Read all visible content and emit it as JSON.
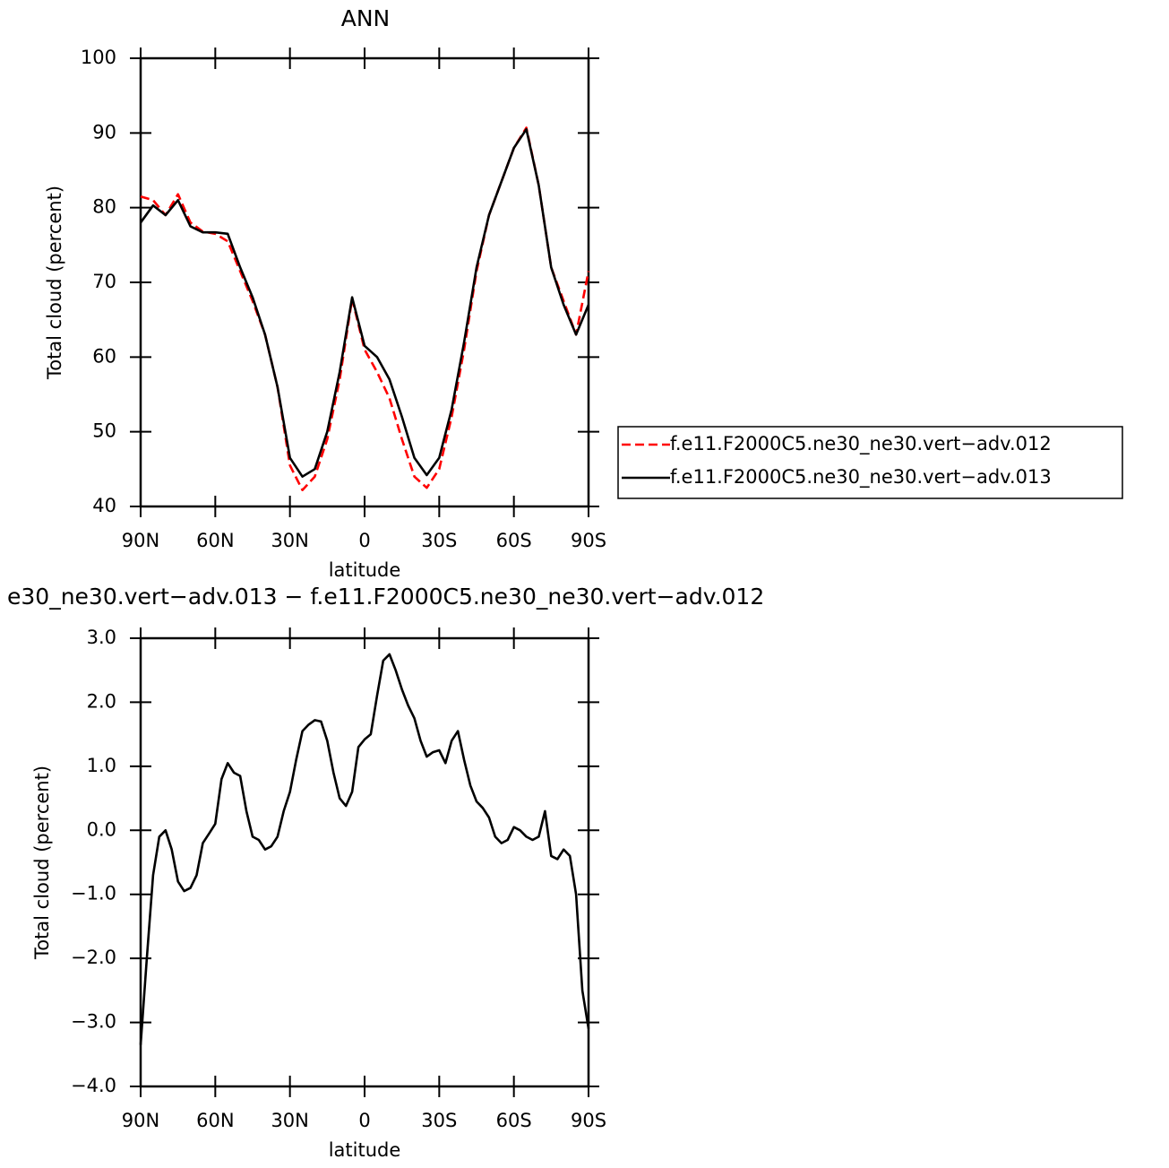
{
  "chart_data": [
    {
      "type": "line",
      "title": "ANN",
      "xlabel": "latitude",
      "ylabel": "Total cloud (percent)",
      "x": [
        90,
        85,
        80,
        75,
        70,
        65,
        60,
        55,
        50,
        45,
        40,
        35,
        30,
        25,
        20,
        15,
        10,
        5,
        0,
        -5,
        -10,
        -15,
        -20,
        -25,
        -30,
        -35,
        -40,
        -45,
        -50,
        -55,
        -60,
        -65,
        -70,
        -75,
        -80,
        -85,
        -90
      ],
      "series": [
        {
          "name": "f.e11.F2000C5.ne30_ne30.vert−adv.012",
          "color": "#ff0000",
          "linestyle": "dashed",
          "values": [
            81.5,
            81,
            79,
            81.8,
            78,
            76.8,
            76.5,
            75.5,
            71.5,
            67.5,
            63,
            56,
            45.5,
            42.2,
            44,
            49,
            57,
            67.8,
            61,
            58,
            54.5,
            49,
            44,
            42.5,
            45,
            52,
            61,
            71.5,
            79,
            83.5,
            88,
            90.7,
            83,
            72,
            67.5,
            63,
            71.5
          ]
        },
        {
          "name": "f.e11.F2000C5.ne30_ne30.vert−adv.013",
          "color": "#000000",
          "linestyle": "solid",
          "values": [
            78,
            80.3,
            79,
            81,
            77.5,
            76.7,
            76.7,
            76.5,
            72,
            68,
            63,
            56,
            46.5,
            44,
            45,
            50,
            58,
            68,
            61.5,
            60,
            57,
            52,
            46.5,
            44.2,
            46.5,
            53,
            62,
            72,
            79,
            83.5,
            88,
            90.5,
            83,
            72,
            67,
            63,
            67
          ]
        }
      ],
      "xlim": [
        90,
        -90
      ],
      "xticks": [
        {
          "value": 90,
          "label": "90N"
        },
        {
          "value": 60,
          "label": "60N"
        },
        {
          "value": 30,
          "label": "30N"
        },
        0,
        {
          "value": -30,
          "label": "30S"
        },
        {
          "value": -60,
          "label": "60S"
        },
        {
          "value": -90,
          "label": "90S"
        }
      ],
      "ylim": [
        40,
        100
      ],
      "yticks": [
        40,
        50,
        60,
        70,
        80,
        90,
        100
      ],
      "legend": "right"
    },
    {
      "type": "line",
      "title": "e30_ne30.vert−adv.013 − f.e11.F2000C5.ne30_ne30.vert−adv.012",
      "xlabel": "latitude",
      "ylabel": "Total cloud (percent)",
      "x": [
        90,
        87.5,
        85,
        82.5,
        80,
        77.5,
        75,
        72.5,
        70,
        67.5,
        65,
        62.5,
        60,
        57.5,
        55,
        52.5,
        50,
        47.5,
        45,
        42.5,
        40,
        37.5,
        35,
        32.5,
        30,
        27.5,
        25,
        22.5,
        20,
        17.5,
        15,
        12.5,
        10,
        7.5,
        5,
        2.5,
        0,
        -2.5,
        -5,
        -7.5,
        -10,
        -12.5,
        -15,
        -17.5,
        -20,
        -22.5,
        -25,
        -27.5,
        -30,
        -32.5,
        -35,
        -37.5,
        -40,
        -42.5,
        -45,
        -47.5,
        -50,
        -52.5,
        -55,
        -57.5,
        -60,
        -62.5,
        -65,
        -67.5,
        -70,
        -72.5,
        -75,
        -77.5,
        -80,
        -82.5,
        -85,
        -87.5,
        -90
      ],
      "values": [
        -3.35,
        -2.0,
        -0.7,
        -0.1,
        0.0,
        -0.3,
        -0.8,
        -0.95,
        -0.9,
        -0.7,
        -0.2,
        -0.05,
        0.1,
        0.8,
        1.05,
        0.9,
        0.85,
        0.3,
        -0.1,
        -0.15,
        -0.3,
        -0.25,
        -0.1,
        0.3,
        0.6,
        1.1,
        1.55,
        1.65,
        1.72,
        1.7,
        1.4,
        0.9,
        0.5,
        0.38,
        0.6,
        1.3,
        1.42,
        1.5,
        2.1,
        2.65,
        2.75,
        2.5,
        2.2,
        1.95,
        1.75,
        1.4,
        1.15,
        1.22,
        1.25,
        1.05,
        1.4,
        1.55,
        1.1,
        0.7,
        0.45,
        0.35,
        0.2,
        -0.1,
        -0.2,
        -0.15,
        0.05,
        0.0,
        -0.1,
        -0.15,
        -0.1,
        0.3,
        -0.4,
        -0.45,
        -0.3,
        -0.4,
        -1.0,
        -2.5,
        -3.1
      ],
      "color": "#000000",
      "xlim": [
        90,
        -90
      ],
      "xticks": [
        {
          "value": 90,
          "label": "90N"
        },
        {
          "value": 60,
          "label": "60N"
        },
        {
          "value": 30,
          "label": "30N"
        },
        0,
        {
          "value": -30,
          "label": "30S"
        },
        {
          "value": -60,
          "label": "60S"
        },
        {
          "value": -90,
          "label": "90S"
        }
      ],
      "ylim": [
        -4,
        3
      ],
      "yticks": [
        {
          "value": -4,
          "label": "−4.0"
        },
        {
          "value": -3,
          "label": "−3.0"
        },
        {
          "value": -2,
          "label": "−2.0"
        },
        {
          "value": -1,
          "label": "−1.0"
        },
        {
          "value": 0,
          "label": "0.0"
        },
        {
          "value": 1,
          "label": "1.0"
        },
        {
          "value": 2,
          "label": "2.0"
        },
        {
          "value": 3,
          "label": "3.0"
        }
      ]
    }
  ]
}
